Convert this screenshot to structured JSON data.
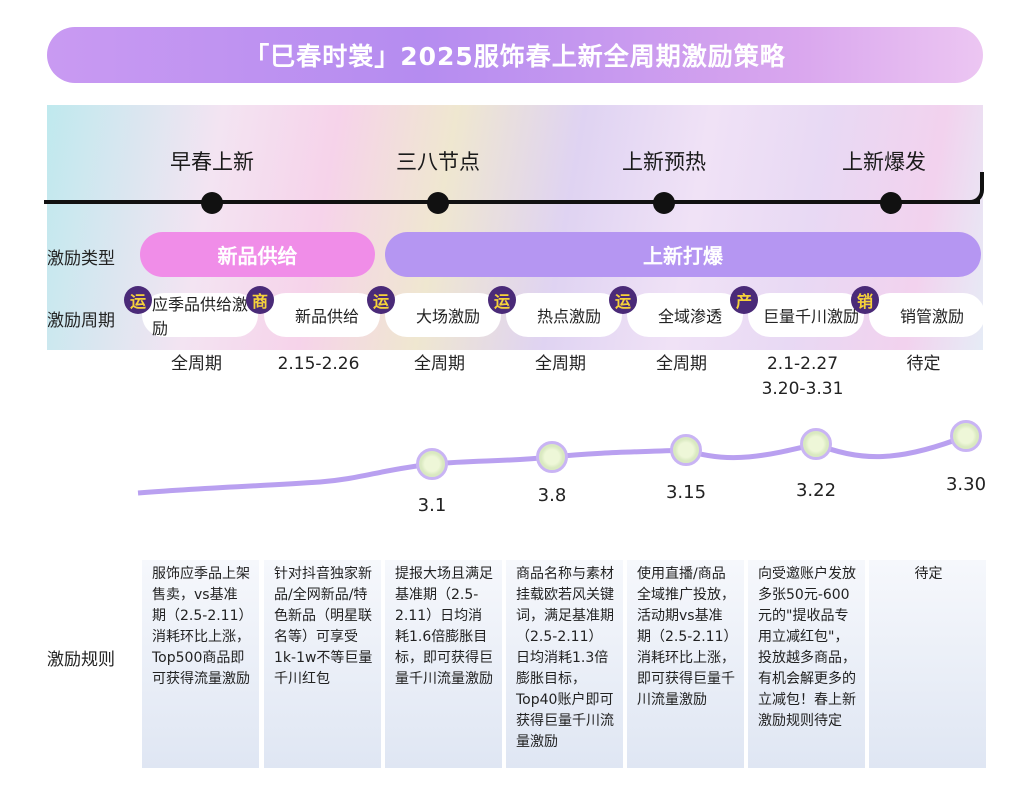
{
  "title": "「巳春时裳」2025服饰春上新全周期激励策略",
  "timeline": [
    "早春上新",
    "三八节点",
    "上新预热",
    "上新爆发"
  ],
  "row_labels": {
    "type": "激励类型",
    "period": "激励周期",
    "rules": "激励规则"
  },
  "types": [
    "新品供给",
    "上新打爆"
  ],
  "colors": {
    "pink": "#f08de8",
    "purple": "#b596f2"
  },
  "columns": [
    {
      "badge": "运",
      "name": "应季品供给激励",
      "period": [
        "全周期"
      ],
      "rule": "服饰应季品上架售卖，vs基准期（2.5-2.11）消耗环比上涨，Top500商品即可获得流量激励"
    },
    {
      "badge": "商",
      "name": "新品供给",
      "period": [
        "2.15-2.26"
      ],
      "rule": "针对抖音独家新品/全网新品/特色新品（明星联名等）可享受1k-1w不等巨量千川红包"
    },
    {
      "badge": "运",
      "name": "大场激励",
      "period": [
        "全周期"
      ],
      "rule": "提报大场且满足基准期（2.5-2.11）日均消耗1.6倍膨胀目标，即可获得巨量千川流量激励"
    },
    {
      "badge": "运",
      "name": "热点激励",
      "period": [
        "全周期"
      ],
      "rule": "商品名称与素材挂载欧若风关键词，满足基准期（2.5-2.11）日均消耗1.3倍膨胀目标，Top40账户即可获得巨量千川流量激励"
    },
    {
      "badge": "运",
      "name": "全域渗透",
      "period": [
        "全周期"
      ],
      "rule": "使用直播/商品全域推广投放，活动期vs基准期（2.5-2.11）消耗环比上涨，即可获得巨量千川流量激励"
    },
    {
      "badge": "产",
      "name": "巨量千川激励",
      "period": [
        "2.1-2.27",
        "3.20-3.31"
      ],
      "rule": "向受邀账户发放多张50元-600元的\"提收品专用立减红包\"，投放越多商品，有机会解更多的立减包！春上新激励规则待定"
    },
    {
      "badge": "销",
      "name": "销管激励",
      "period": [
        "待定"
      ],
      "rule": "待定"
    }
  ],
  "wave_dates": [
    "3.1",
    "3.8",
    "3.15",
    "3.22",
    "3.30"
  ]
}
